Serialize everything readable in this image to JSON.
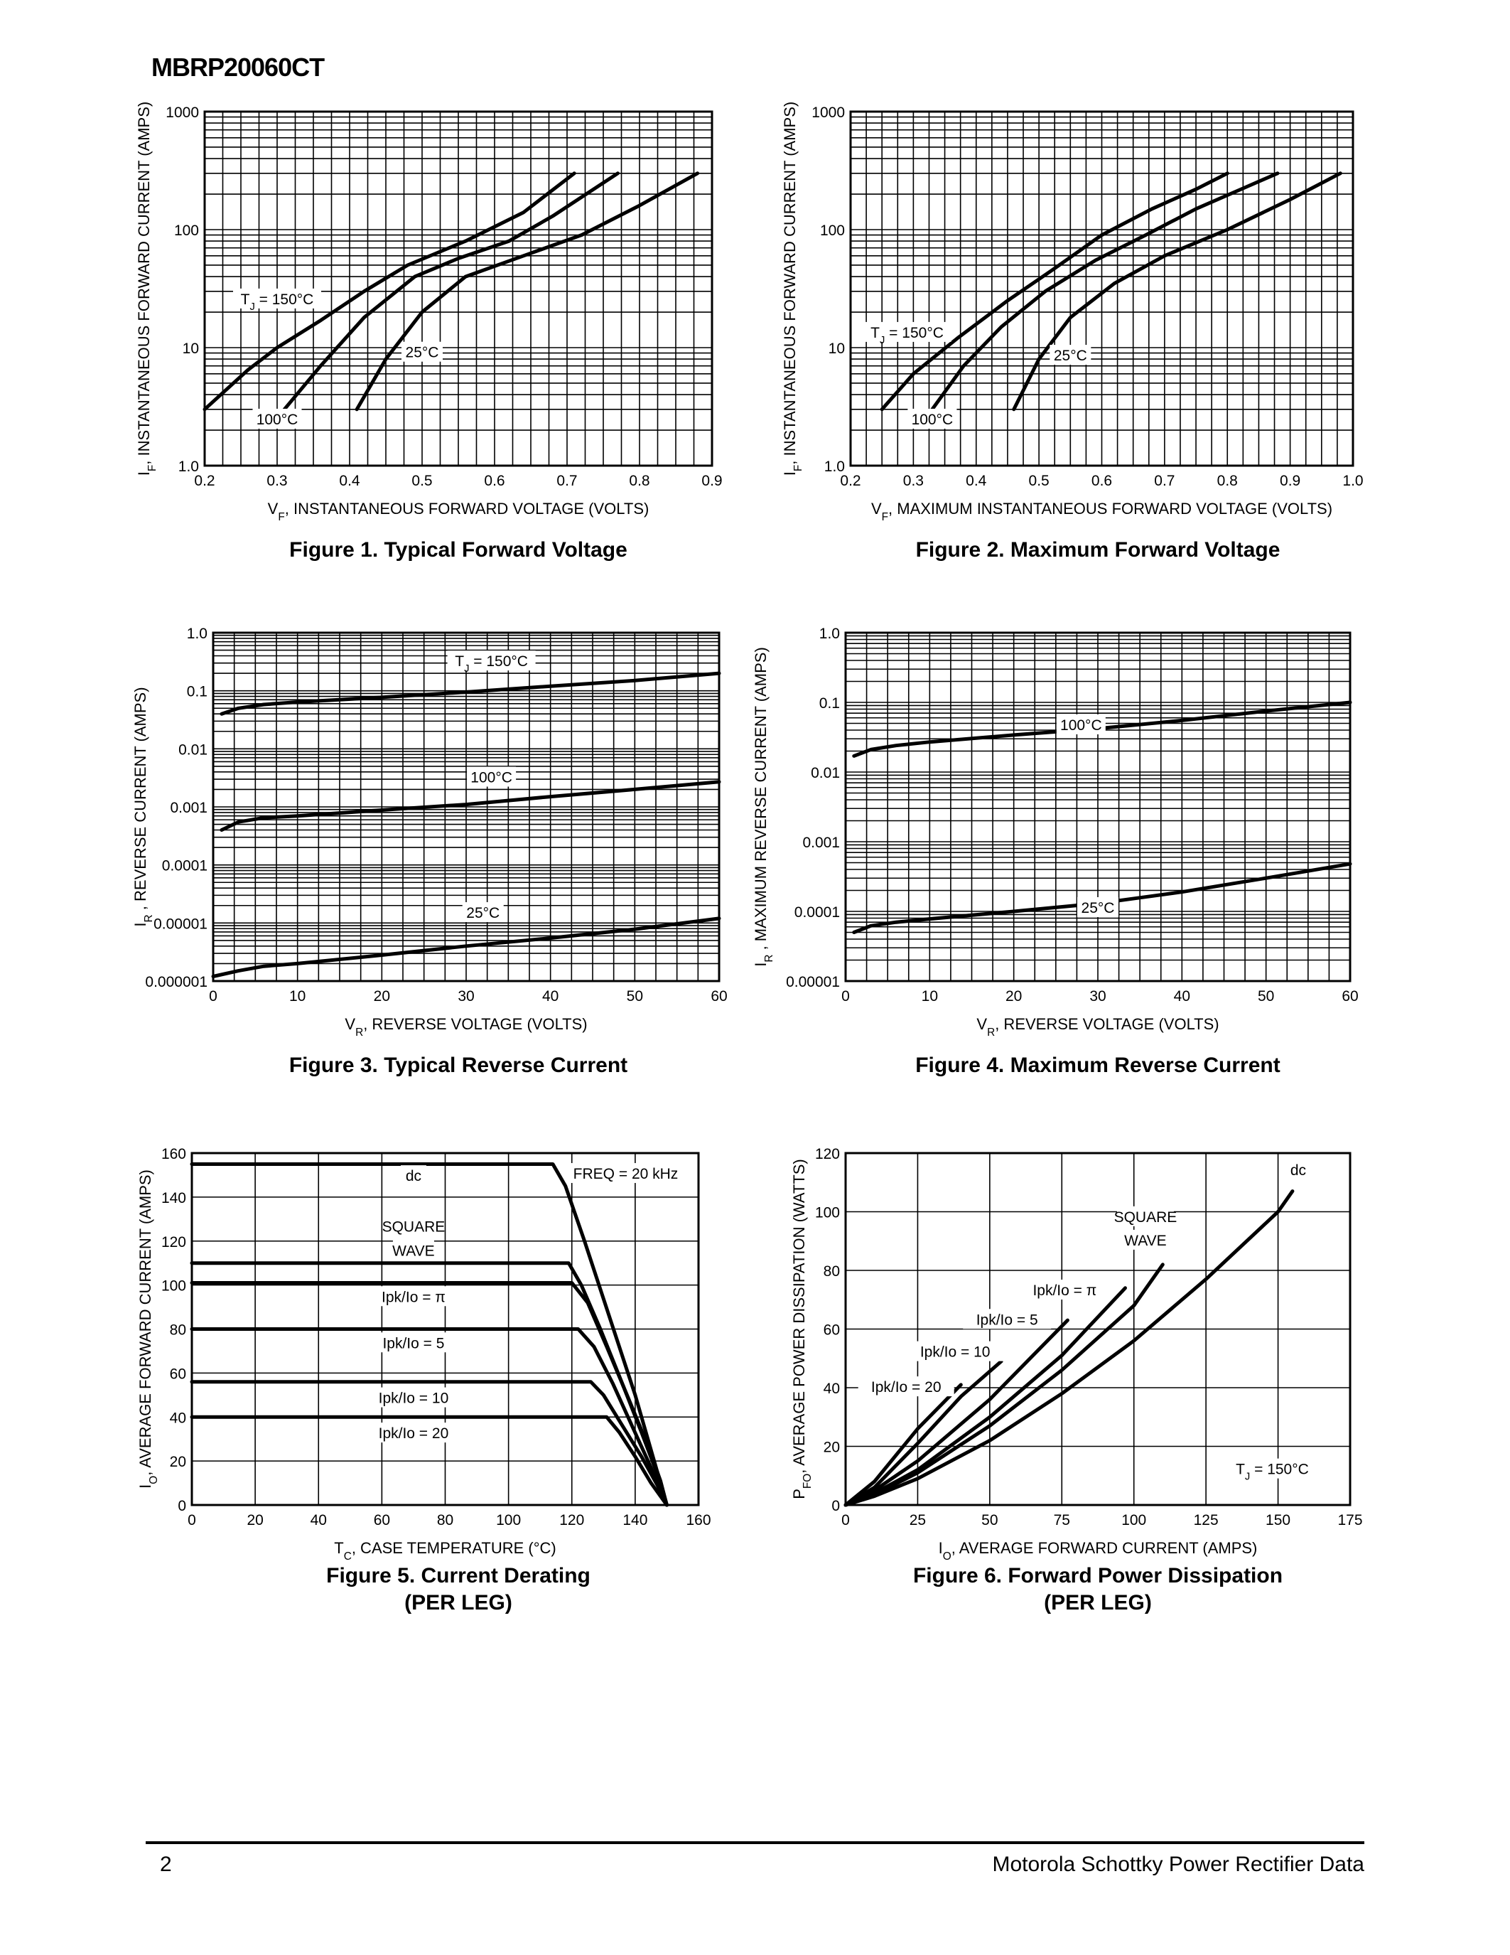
{
  "header": {
    "part_number": "MBRP20060CT"
  },
  "footer": {
    "page": "2",
    "source": "Motorola Schottky Power Rectifier Data"
  },
  "chart_data": [
    {
      "id": "fig1",
      "type": "line",
      "caption": "Figure 1. Typical Forward Voltage",
      "caption_line2": "",
      "xlabel": "V",
      "xlabel_sub": "F",
      "xlabel_rest": ", INSTANTANEOUS FORWARD VOLTAGE (VOLTS)",
      "ylabel": "I",
      "ylabel_sub": "F",
      "ylabel_rest": ", INSTANTANEOUS FORWARD CURRENT (AMPS)",
      "xscale": "linear",
      "yscale": "log",
      "xlim": [
        0.2,
        0.9
      ],
      "ylim": [
        1,
        1000
      ],
      "xticks": [
        0.2,
        0.3,
        0.4,
        0.5,
        0.6,
        0.7,
        0.8,
        0.9
      ],
      "xtick_labels": [
        "0.2",
        "0.3",
        "0.4",
        "0.5",
        "0.6",
        "0.7",
        "0.8",
        "0.9"
      ],
      "yticks": [
        1,
        10,
        100,
        1000
      ],
      "ytick_labels": [
        "1.0",
        "10",
        "100",
        "1000"
      ],
      "grid": true,
      "series": [
        {
          "name": "T_J = 150°C",
          "x": [
            0.2,
            0.26,
            0.3,
            0.36,
            0.42,
            0.48,
            0.56,
            0.64,
            0.71
          ],
          "y": [
            3,
            6.5,
            10,
            17,
            30,
            50,
            80,
            140,
            300
          ]
        },
        {
          "name": "100°C",
          "x": [
            0.31,
            0.36,
            0.42,
            0.49,
            0.55,
            0.62,
            0.68,
            0.77
          ],
          "y": [
            3,
            7,
            18,
            40,
            57,
            80,
            130,
            300
          ]
        },
        {
          "name": "25°C",
          "x": [
            0.41,
            0.45,
            0.5,
            0.56,
            0.64,
            0.72,
            0.8,
            0.88
          ],
          "y": [
            3,
            8,
            20,
            40,
            60,
            90,
            160,
            300
          ]
        }
      ],
      "annotations": [
        {
          "text": "T",
          "sub": "J",
          "rest": " = 150°C",
          "x": 0.3,
          "y": 24
        },
        {
          "text": "100°C",
          "x": 0.3,
          "y": 2.3
        },
        {
          "text": "25°C",
          "x": 0.5,
          "y": 8.5
        }
      ]
    },
    {
      "id": "fig2",
      "type": "line",
      "caption": "Figure 2. Maximum Forward Voltage",
      "caption_line2": "",
      "xlabel": "V",
      "xlabel_sub": "F",
      "xlabel_rest": ", MAXIMUM INSTANTANEOUS FORWARD VOLTAGE (VOLTS)",
      "ylabel": "I",
      "ylabel_sub": "F",
      "ylabel_rest": ", INSTANTANEOUS FORWARD CURRENT (AMPS)",
      "xscale": "linear",
      "yscale": "log",
      "xlim": [
        0.2,
        1.0
      ],
      "ylim": [
        1,
        1000
      ],
      "xticks": [
        0.2,
        0.3,
        0.4,
        0.5,
        0.6,
        0.7,
        0.8,
        0.9,
        1.0
      ],
      "xtick_labels": [
        "0.2",
        "0.3",
        "0.4",
        "0.5",
        "0.6",
        "0.7",
        "0.8",
        "0.9",
        "1.0"
      ],
      "yticks": [
        1,
        10,
        100,
        1000
      ],
      "ytick_labels": [
        "1.0",
        "10",
        "100",
        "1000"
      ],
      "grid": true,
      "series": [
        {
          "name": "T_J = 150°C",
          "x": [
            0.25,
            0.3,
            0.37,
            0.45,
            0.52,
            0.6,
            0.68,
            0.75,
            0.8
          ],
          "y": [
            3,
            6,
            12,
            25,
            45,
            90,
            150,
            220,
            300
          ]
        },
        {
          "name": "100°C",
          "x": [
            0.33,
            0.38,
            0.44,
            0.51,
            0.59,
            0.67,
            0.75,
            0.83,
            0.88
          ],
          "y": [
            3,
            7,
            15,
            30,
            55,
            90,
            150,
            230,
            300
          ]
        },
        {
          "name": "25°C",
          "x": [
            0.46,
            0.5,
            0.55,
            0.62,
            0.7,
            0.8,
            0.9,
            0.98
          ],
          "y": [
            3,
            8,
            18,
            35,
            60,
            100,
            180,
            300
          ]
        }
      ],
      "annotations": [
        {
          "text": "T",
          "sub": "J",
          "rest": " = 150°C",
          "x": 0.29,
          "y": 12.5
        },
        {
          "text": "100°C",
          "x": 0.33,
          "y": 2.3
        },
        {
          "text": "25°C",
          "x": 0.55,
          "y": 8
        }
      ]
    },
    {
      "id": "fig3",
      "type": "line",
      "caption": "Figure 3. Typical Reverse Current",
      "caption_line2": "",
      "xlabel": "V",
      "xlabel_sub": "R",
      "xlabel_rest": ", REVERSE VOLTAGE (VOLTS)",
      "ylabel": "I",
      "ylabel_sub": "R",
      "ylabel_rest": " , REVERSE CURRENT (AMPS)",
      "xscale": "linear",
      "yscale": "log",
      "xlim": [
        0,
        60
      ],
      "ylim": [
        1e-06,
        1
      ],
      "xticks": [
        0,
        10,
        20,
        30,
        40,
        50,
        60
      ],
      "xtick_labels": [
        "0",
        "10",
        "20",
        "30",
        "40",
        "50",
        "60"
      ],
      "yticks": [
        1e-06,
        1e-05,
        0.0001,
        0.001,
        0.01,
        0.1,
        1
      ],
      "ytick_labels": [
        "0.000001",
        "0.00001",
        "0.0001",
        "0.001",
        "0.01",
        "0.1",
        "1.0"
      ],
      "grid": true,
      "series": [
        {
          "name": "T_J = 150°C",
          "x": [
            1,
            3,
            6,
            10,
            20,
            30,
            40,
            50,
            60
          ],
          "y": [
            0.04,
            0.05,
            0.058,
            0.064,
            0.077,
            0.095,
            0.12,
            0.15,
            0.2
          ]
        },
        {
          "name": "100°C",
          "x": [
            1,
            3,
            6,
            10,
            20,
            30,
            40,
            50,
            60
          ],
          "y": [
            0.0004,
            0.00055,
            0.00065,
            0.0007,
            0.00088,
            0.0011,
            0.0015,
            0.002,
            0.0027
          ]
        },
        {
          "name": "25°C",
          "x": [
            0,
            3,
            6,
            10,
            20,
            30,
            40,
            50,
            60
          ],
          "y": [
            1.2e-06,
            1.5e-06,
            1.8e-06,
            2e-06,
            2.8e-06,
            4e-06,
            5.5e-06,
            7.8e-06,
            1.2e-05
          ]
        }
      ],
      "annotations": [
        {
          "text": "T",
          "sub": "J",
          "rest": " = 150°C",
          "x": 33,
          "y": 0.28
        },
        {
          "text": "100°C",
          "x": 33,
          "y": 0.0028
        },
        {
          "text": "25°C",
          "x": 32,
          "y": 1.3e-05
        }
      ]
    },
    {
      "id": "fig4",
      "type": "line",
      "caption": "Figure 4. Maximum Reverse Current",
      "caption_line2": "",
      "xlabel": "V",
      "xlabel_sub": "R",
      "xlabel_rest": ", REVERSE VOLTAGE (VOLTS)",
      "ylabel": "I",
      "ylabel_sub": "R",
      "ylabel_rest": " , MAXIMUM REVERSE CURRENT (AMPS)",
      "xscale": "linear",
      "yscale": "log",
      "xlim": [
        0,
        60
      ],
      "ylim": [
        1e-05,
        1
      ],
      "xticks": [
        0,
        10,
        20,
        30,
        40,
        50,
        60
      ],
      "xtick_labels": [
        "0",
        "10",
        "20",
        "30",
        "40",
        "50",
        "60"
      ],
      "yticks": [
        1e-05,
        0.0001,
        0.001,
        0.01,
        0.1,
        1
      ],
      "ytick_labels": [
        "0.00001",
        "0.0001",
        "0.001",
        "0.01",
        "0.1",
        "1.0"
      ],
      "grid": true,
      "series": [
        {
          "name": "100°C",
          "x": [
            1,
            3,
            6,
            10,
            20,
            30,
            40,
            50,
            60
          ],
          "y": [
            0.017,
            0.021,
            0.024,
            0.027,
            0.034,
            0.042,
            0.055,
            0.075,
            0.1
          ]
        },
        {
          "name": "25°C",
          "x": [
            1,
            3,
            6,
            10,
            20,
            30,
            40,
            50,
            60
          ],
          "y": [
            5e-05,
            6.2e-05,
            7e-05,
            7.8e-05,
            0.0001,
            0.00013,
            0.00019,
            0.0003,
            0.00048
          ]
        }
      ],
      "annotations": [
        {
          "text": "100°C",
          "x": 28,
          "y": 0.042
        },
        {
          "text": "25°C",
          "x": 30,
          "y": 0.0001
        }
      ]
    },
    {
      "id": "fig5",
      "type": "line",
      "caption": "Figure 5. Current Derating",
      "caption_line2": "(PER LEG)",
      "xlabel": "T",
      "xlabel_sub": "C",
      "xlabel_rest": ", CASE TEMPERATURE (°C)",
      "ylabel": "I",
      "ylabel_sub": "O",
      "ylabel_rest": ", AVERAGE FORWARD CURRENT (AMPS)",
      "xscale": "linear",
      "yscale": "linear",
      "xlim": [
        0,
        160
      ],
      "ylim": [
        0,
        160
      ],
      "xticks": [
        0,
        20,
        40,
        60,
        80,
        100,
        120,
        140,
        160
      ],
      "xtick_labels": [
        "0",
        "20",
        "40",
        "60",
        "80",
        "100",
        "120",
        "140",
        "160"
      ],
      "yticks": [
        0,
        20,
        40,
        60,
        80,
        100,
        120,
        140,
        160
      ],
      "ytick_labels": [
        "0",
        "20",
        "40",
        "60",
        "80",
        "100",
        "120",
        "140",
        "160"
      ],
      "grid": true,
      "series": [
        {
          "name": "dc",
          "x": [
            0,
            114,
            118,
            124,
            132,
            140,
            146,
            150
          ],
          "y": [
            155,
            155,
            145,
            120,
            85,
            50,
            20,
            0
          ]
        },
        {
          "name": "SQUARE WAVE",
          "x": [
            0,
            119,
            123,
            129,
            136,
            142,
            147,
            150
          ],
          "y": [
            110,
            110,
            100,
            80,
            55,
            33,
            14,
            0
          ]
        },
        {
          "name": "Ipk/Io = π",
          "x": [
            0,
            120,
            125,
            131,
            138,
            144,
            148,
            150
          ],
          "y": [
            101,
            101,
            92,
            72,
            48,
            27,
            11,
            0
          ]
        },
        {
          "name": "Ipk/Io = 5",
          "x": [
            0,
            122,
            127,
            133,
            139,
            145,
            150
          ],
          "y": [
            80,
            80,
            72,
            55,
            36,
            17,
            0
          ]
        },
        {
          "name": "Ipk/Io = 10",
          "x": [
            0,
            126,
            130,
            136,
            142,
            147,
            150
          ],
          "y": [
            56,
            56,
            50,
            36,
            22,
            9,
            0
          ]
        },
        {
          "name": "Ipk/Io = 20",
          "x": [
            0,
            131,
            135,
            140,
            145,
            150
          ],
          "y": [
            40,
            40,
            33,
            22,
            10,
            0
          ]
        }
      ],
      "annotations": [
        {
          "text": "dc",
          "x": 70,
          "y": 148
        },
        {
          "text": "FREQ = 20 kHz",
          "x": 137,
          "y": 149
        },
        {
          "text": "SQUARE",
          "x": 70,
          "y": 125
        },
        {
          "text": "WAVE",
          "x": 70,
          "y": 114
        },
        {
          "text": "Ipk/Io = π",
          "x": 70,
          "y": 93
        },
        {
          "text": "Ipk/Io = 5",
          "x": 70,
          "y": 72
        },
        {
          "text": "Ipk/Io = 10",
          "x": 70,
          "y": 47
        },
        {
          "text": "Ipk/Io = 20",
          "x": 70,
          "y": 31
        }
      ]
    },
    {
      "id": "fig6",
      "type": "line",
      "caption": "Figure 6. Forward Power Dissipation",
      "caption_line2": "(PER LEG)",
      "xlabel": "I",
      "xlabel_sub": "O",
      "xlabel_rest": ", AVERAGE FORWARD CURRENT (AMPS)",
      "ylabel": "P",
      "ylabel_sub": "FO",
      "ylabel_rest": ", AVERAGE POWER DISSIPATION (WATTS)",
      "xscale": "linear",
      "yscale": "linear",
      "xlim": [
        0,
        175
      ],
      "ylim": [
        0,
        120
      ],
      "xticks": [
        0,
        25,
        50,
        75,
        100,
        125,
        150,
        175
      ],
      "xtick_labels": [
        "0",
        "25",
        "50",
        "75",
        "100",
        "125",
        "150",
        "175"
      ],
      "yticks": [
        0,
        20,
        40,
        60,
        80,
        100,
        120
      ],
      "ytick_labels": [
        "0",
        "20",
        "40",
        "60",
        "80",
        "100",
        "120"
      ],
      "grid": true,
      "series": [
        {
          "name": "dc",
          "x": [
            0,
            10,
            25,
            50,
            75,
            100,
            125,
            150,
            155
          ],
          "y": [
            0,
            3,
            9,
            22,
            38,
            56,
            77,
            100,
            107
          ]
        },
        {
          "name": "SQUARE WAVE",
          "x": [
            0,
            10,
            25,
            50,
            75,
            100,
            110
          ],
          "y": [
            0,
            3.5,
            11,
            27,
            46,
            68,
            82
          ]
        },
        {
          "name": "Ipk/Io = π",
          "x": [
            0,
            10,
            25,
            50,
            75,
            97
          ],
          "y": [
            0,
            4,
            12,
            30,
            51,
            74
          ]
        },
        {
          "name": "Ipk/Io = 5",
          "x": [
            0,
            10,
            25,
            50,
            77
          ],
          "y": [
            0,
            5,
            15,
            36,
            63
          ]
        },
        {
          "name": "Ipk/Io = 10",
          "x": [
            0,
            10,
            25,
            40,
            54
          ],
          "y": [
            0,
            6,
            21,
            37,
            49
          ]
        },
        {
          "name": "Ipk/Io = 20",
          "x": [
            0,
            10,
            25,
            40
          ],
          "y": [
            0,
            8,
            26,
            41
          ]
        }
      ],
      "annotations": [
        {
          "text": "dc",
          "x": 157,
          "y": 113
        },
        {
          "text": "SQUARE",
          "x": 104,
          "y": 97
        },
        {
          "text": "WAVE",
          "x": 104,
          "y": 89
        },
        {
          "text": "Ipk/Io = π",
          "x": 76,
          "y": 72
        },
        {
          "text": "Ipk/Io = 5",
          "x": 56,
          "y": 62
        },
        {
          "text": "Ipk/Io = 10",
          "x": 38,
          "y": 51
        },
        {
          "text": "Ipk/Io = 20",
          "x": 21,
          "y": 39
        },
        {
          "text": "T",
          "sub": "J",
          "rest": " = 150°C",
          "x": 148,
          "y": 11
        }
      ]
    }
  ]
}
